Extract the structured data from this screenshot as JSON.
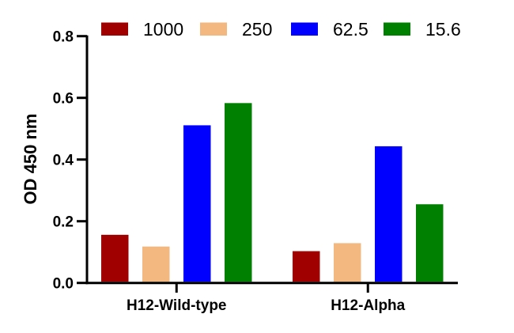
{
  "chart_data": {
    "type": "bar",
    "title": "",
    "xlabel": "",
    "ylabel": "OD 450 nm",
    "ylim": [
      0,
      0.8
    ],
    "yticks": [
      "0.0",
      "0.2",
      "0.4",
      "0.6",
      "0.8"
    ],
    "grid": false,
    "legend_position": "top",
    "categories": [
      "H12-Wild-type",
      "H12-Alpha"
    ],
    "series": [
      {
        "name": "1000",
        "color": "#A00000",
        "values": [
          0.156,
          0.103
        ]
      },
      {
        "name": "250",
        "color": "#F2B880",
        "values": [
          0.118,
          0.129
        ]
      },
      {
        "name": "62.5",
        "color": "#0000FF",
        "values": [
          0.511,
          0.443
        ]
      },
      {
        "name": "15.6",
        "color": "#008000",
        "values": [
          0.583,
          0.255
        ]
      }
    ]
  }
}
